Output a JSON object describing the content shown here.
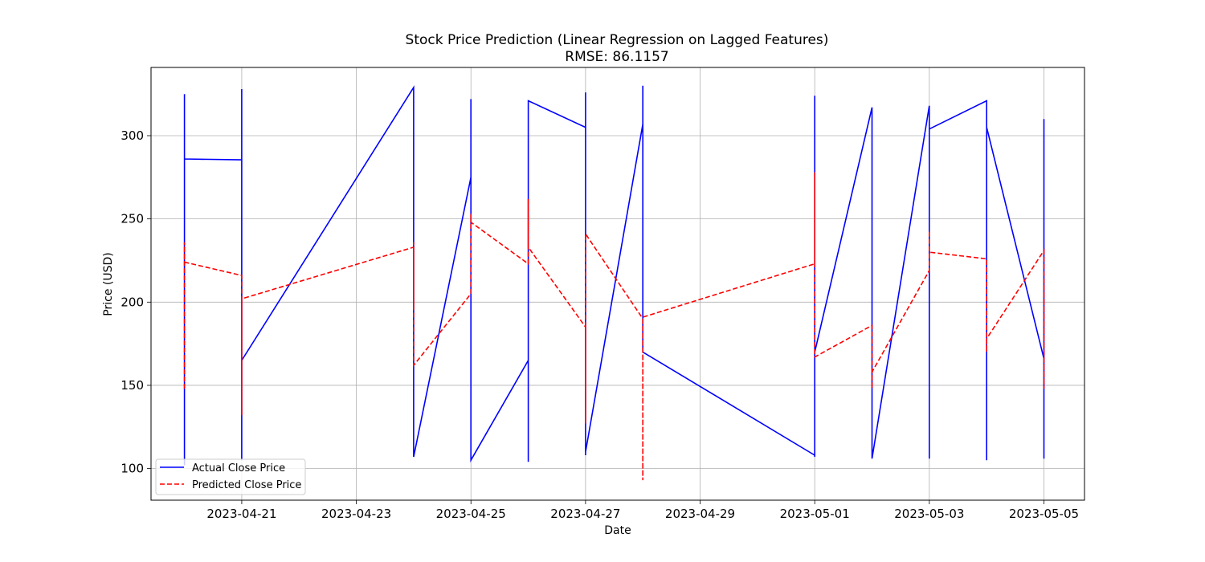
{
  "chart_data": {
    "type": "line",
    "title": "Stock Price Prediction (Linear Regression on Lagged Features)",
    "subtitle": "RMSE: 86.1157",
    "xlabel": "Date",
    "ylabel": "Price (USD)",
    "xlim": [
      "2023-04-19T10:00",
      "2023-05-05T17:00"
    ],
    "ylim": [
      81,
      341
    ],
    "x_ticks": [
      "2023-04-21",
      "2023-04-23",
      "2023-04-25",
      "2023-04-27",
      "2023-04-29",
      "2023-05-01",
      "2023-05-03",
      "2023-05-05"
    ],
    "y_ticks": [
      100,
      150,
      200,
      250,
      300
    ],
    "grid": true,
    "legend_position": "lower-left",
    "series": [
      {
        "name": "Actual Close Price",
        "color": "#0000ff",
        "style": "solid",
        "x": [
          "2023-04-20",
          "2023-04-20",
          "2023-04-20",
          "2023-04-20",
          "2023-04-21",
          "2023-04-21",
          "2023-04-21",
          "2023-04-21",
          "2023-04-24",
          "2023-04-24",
          "2023-04-24",
          "2023-04-24",
          "2023-04-25",
          "2023-04-25",
          "2023-04-25",
          "2023-04-25",
          "2023-04-26",
          "2023-04-26",
          "2023-04-26",
          "2023-04-27",
          "2023-04-27",
          "2023-04-27",
          "2023-04-27",
          "2023-04-28",
          "2023-04-28",
          "2023-04-28",
          "2023-05-01",
          "2023-05-01",
          "2023-05-01",
          "2023-05-01",
          "2023-05-02",
          "2023-05-02",
          "2023-05-03",
          "2023-05-03",
          "2023-05-03",
          "2023-05-04",
          "2023-05-04",
          "2023-05-04",
          "2023-05-05",
          "2023-05-05",
          "2023-05-05"
        ],
        "y": [
          106,
          325,
          102,
          286,
          285.5,
          105,
          328,
          165,
          329,
          107,
          282,
          107,
          275,
          105,
          322,
          105,
          165,
          104,
          321,
          305,
          108,
          326,
          110,
          307,
          330,
          170,
          108,
          324,
          107,
          170,
          317,
          106,
          318,
          106,
          304,
          321,
          105,
          305,
          166,
          310,
          106
        ]
      },
      {
        "name": "Predicted Close Price",
        "color": "#ff0000",
        "style": "dashed",
        "x": [
          "2023-04-20",
          "2023-04-20",
          "2023-04-20",
          "2023-04-21",
          "2023-04-21",
          "2023-04-21",
          "2023-04-24",
          "2023-04-24",
          "2023-04-24",
          "2023-04-24",
          "2023-04-25",
          "2023-04-25",
          "2023-04-25",
          "2023-04-26",
          "2023-04-26",
          "2023-04-26",
          "2023-04-27",
          "2023-04-27",
          "2023-04-27",
          "2023-04-28",
          "2023-04-28",
          "2023-04-28",
          "2023-05-01",
          "2023-05-01",
          "2023-05-01",
          "2023-05-02",
          "2023-05-02",
          "2023-05-02",
          "2023-05-03",
          "2023-05-03",
          "2023-05-03",
          "2023-05-04",
          "2023-05-04",
          "2023-05-04",
          "2023-05-05",
          "2023-05-05",
          "2023-05-05"
        ],
        "y": [
          148,
          236,
          224,
          216,
          132,
          202,
          233,
          198,
          236,
          162,
          205,
          253,
          248,
          223,
          262,
          233,
          185,
          127,
          241,
          190,
          93,
          191,
          223,
          278,
          167,
          186,
          148,
          158,
          219,
          243,
          230,
          226,
          170,
          178,
          231,
          148,
          213
        ]
      }
    ]
  }
}
